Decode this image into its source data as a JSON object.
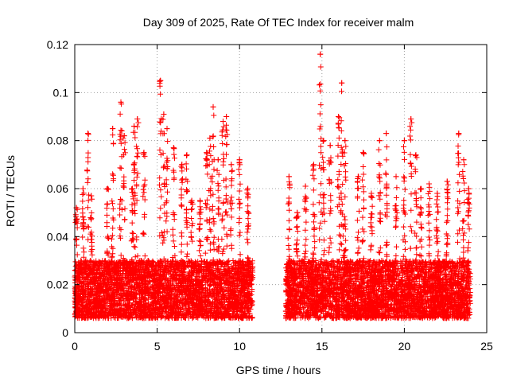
{
  "chart_data": {
    "type": "scatter",
    "title": "Day 309 of 2025, Rate Of TEC Index for receiver malm",
    "xlabel": "GPS time / hours",
    "ylabel": "ROTI / TECUs",
    "xlim": [
      0,
      25
    ],
    "ylim": [
      0,
      0.12
    ],
    "grid": true,
    "x_ticks": [
      {
        "value": 0,
        "label": "0"
      },
      {
        "value": 5,
        "label": "5"
      },
      {
        "value": 10,
        "label": "10"
      },
      {
        "value": 15,
        "label": "15"
      },
      {
        "value": 20,
        "label": "20"
      },
      {
        "value": 25,
        "label": "25"
      }
    ],
    "y_ticks": [
      {
        "value": 0,
        "label": "0"
      },
      {
        "value": 0.02,
        "label": "0.02"
      },
      {
        "value": 0.04,
        "label": "0.04"
      },
      {
        "value": 0.06,
        "label": "0.06"
      },
      {
        "value": 0.08,
        "label": "0.08"
      },
      {
        "value": 0.1,
        "label": "0.1"
      },
      {
        "value": 0.12,
        "label": "0.12"
      }
    ],
    "marker": "+",
    "series": [
      {
        "name": "ROTI",
        "color": "#ff0000",
        "segments": [
          {
            "x_start": 0.0,
            "x_end": 10.8,
            "baseline_min": 0.006,
            "baseline_max": 0.03
          },
          {
            "x_start": 12.8,
            "x_end": 24.0,
            "baseline_min": 0.006,
            "baseline_max": 0.03
          }
        ],
        "peaks": [
          {
            "x": 0.1,
            "y": 0.052
          },
          {
            "x": 0.5,
            "y": 0.06
          },
          {
            "x": 0.8,
            "y": 0.083
          },
          {
            "x": 1.0,
            "y": 0.057
          },
          {
            "x": 2.0,
            "y": 0.06
          },
          {
            "x": 2.3,
            "y": 0.085
          },
          {
            "x": 2.8,
            "y": 0.096
          },
          {
            "x": 3.0,
            "y": 0.082
          },
          {
            "x": 3.5,
            "y": 0.06
          },
          {
            "x": 3.6,
            "y": 0.086
          },
          {
            "x": 3.8,
            "y": 0.089
          },
          {
            "x": 4.2,
            "y": 0.075
          },
          {
            "x": 5.2,
            "y": 0.105
          },
          {
            "x": 5.4,
            "y": 0.091
          },
          {
            "x": 5.6,
            "y": 0.085
          },
          {
            "x": 6.0,
            "y": 0.077
          },
          {
            "x": 6.5,
            "y": 0.07
          },
          {
            "x": 6.8,
            "y": 0.074
          },
          {
            "x": 7.1,
            "y": 0.055
          },
          {
            "x": 7.6,
            "y": 0.055
          },
          {
            "x": 8.0,
            "y": 0.075
          },
          {
            "x": 8.2,
            "y": 0.081
          },
          {
            "x": 8.4,
            "y": 0.094
          },
          {
            "x": 8.7,
            "y": 0.072
          },
          {
            "x": 9.0,
            "y": 0.088
          },
          {
            "x": 9.2,
            "y": 0.09
          },
          {
            "x": 9.5,
            "y": 0.07
          },
          {
            "x": 10.0,
            "y": 0.072
          },
          {
            "x": 10.5,
            "y": 0.06
          },
          {
            "x": 13.0,
            "y": 0.065
          },
          {
            "x": 13.5,
            "y": 0.05
          },
          {
            "x": 14.0,
            "y": 0.061
          },
          {
            "x": 14.5,
            "y": 0.07
          },
          {
            "x": 14.9,
            "y": 0.116
          },
          {
            "x": 15.1,
            "y": 0.08
          },
          {
            "x": 15.5,
            "y": 0.078
          },
          {
            "x": 16.0,
            "y": 0.09
          },
          {
            "x": 16.2,
            "y": 0.104
          },
          {
            "x": 16.4,
            "y": 0.08
          },
          {
            "x": 17.2,
            "y": 0.065
          },
          {
            "x": 17.5,
            "y": 0.075
          },
          {
            "x": 18.0,
            "y": 0.058
          },
          {
            "x": 18.5,
            "y": 0.08
          },
          {
            "x": 18.9,
            "y": 0.083
          },
          {
            "x": 19.5,
            "y": 0.065
          },
          {
            "x": 20.0,
            "y": 0.08
          },
          {
            "x": 20.4,
            "y": 0.089
          },
          {
            "x": 20.7,
            "y": 0.074
          },
          {
            "x": 21.0,
            "y": 0.06
          },
          {
            "x": 21.5,
            "y": 0.062
          },
          {
            "x": 22.0,
            "y": 0.058
          },
          {
            "x": 22.6,
            "y": 0.063
          },
          {
            "x": 23.3,
            "y": 0.083
          },
          {
            "x": 23.6,
            "y": 0.072
          },
          {
            "x": 23.9,
            "y": 0.06
          }
        ]
      }
    ]
  }
}
